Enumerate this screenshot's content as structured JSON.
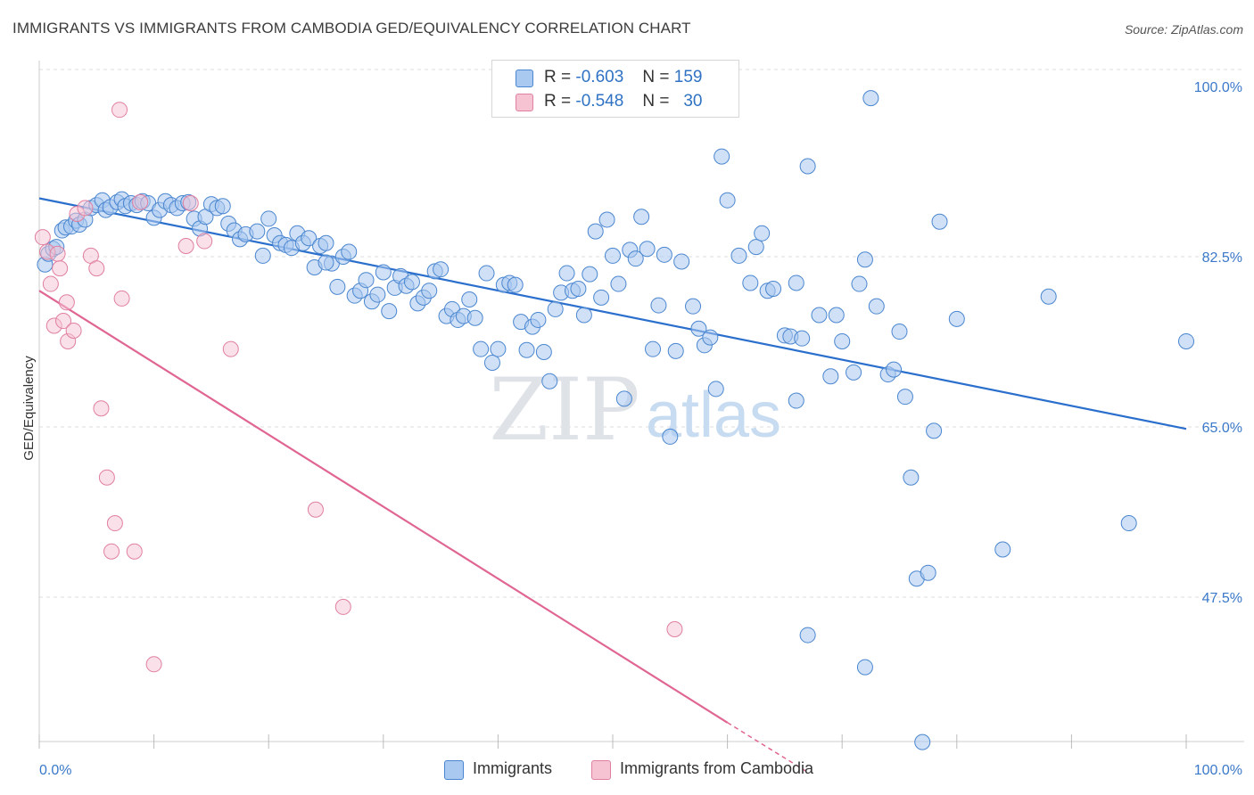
{
  "title": "IMMIGRANTS VS IMMIGRANTS FROM CAMBODIA GED/EQUIVALENCY CORRELATION CHART",
  "source": "Source: ZipAtlas.com",
  "watermark": {
    "zip": "ZIP",
    "atlas": "atlas"
  },
  "legend": {
    "r_label": "R =",
    "n_label": "N =",
    "rows": [
      {
        "r": "-0.603",
        "n": "159"
      },
      {
        "r": "-0.548",
        "n": "30"
      }
    ]
  },
  "bottom_legend": [
    "Immigrants",
    "Immigrants from Cambodia"
  ],
  "colors": {
    "blue_fill": "#a9c9f0",
    "blue_stroke": "#4a86cf",
    "blue_line": "#2b6fcc",
    "pink_fill": "#f6c3d3",
    "pink_stroke": "#e07fa0",
    "pink_line": "#e06592",
    "tick_text": "#3a78c9"
  },
  "chart_data": {
    "type": "scatter",
    "title": "IMMIGRANTS VS IMMIGRANTS FROM CAMBODIA GED/EQUIVALENCY CORRELATION CHART",
    "xlabel": "",
    "ylabel": "GED/Equivalency",
    "xlim": [
      0,
      100
    ],
    "ylim": [
      32,
      100
    ],
    "x_tick_labels": [
      "0.0%",
      "100.0%"
    ],
    "y_ticks": [
      47.5,
      65.0,
      82.5,
      100.0
    ],
    "y_tick_labels": [
      "47.5%",
      "65.0%",
      "82.5%",
      "100.0%"
    ],
    "grid": true,
    "legend_position": "top-center",
    "series": [
      {
        "name": "Immigrants",
        "r": -0.603,
        "n": 159,
        "trend": {
          "x": [
            0,
            100
          ],
          "y": [
            88.5,
            64.8
          ]
        },
        "points": [
          [
            0.5,
            81.7
          ],
          [
            0.8,
            82.8
          ],
          [
            1.2,
            83.3
          ],
          [
            1.5,
            83.5
          ],
          [
            2.0,
            85.2
          ],
          [
            2.3,
            85.5
          ],
          [
            2.8,
            85.6
          ],
          [
            3.2,
            86.2
          ],
          [
            3.5,
            85.8
          ],
          [
            4.0,
            86.3
          ],
          [
            4.5,
            87.5
          ],
          [
            5.0,
            87.8
          ],
          [
            5.5,
            88.3
          ],
          [
            5.8,
            87.3
          ],
          [
            6.2,
            87.6
          ],
          [
            6.8,
            88.1
          ],
          [
            7.2,
            88.4
          ],
          [
            7.5,
            87.7
          ],
          [
            8.0,
            88.0
          ],
          [
            8.5,
            87.8
          ],
          [
            9.0,
            88.2
          ],
          [
            9.5,
            88.0
          ],
          [
            10.0,
            86.5
          ],
          [
            10.5,
            87.3
          ],
          [
            11.0,
            88.2
          ],
          [
            11.5,
            87.8
          ],
          [
            12.0,
            87.5
          ],
          [
            12.5,
            88.0
          ],
          [
            13.0,
            88.1
          ],
          [
            13.5,
            86.4
          ],
          [
            14.0,
            85.4
          ],
          [
            14.5,
            86.6
          ],
          [
            15.0,
            87.9
          ],
          [
            15.5,
            87.5
          ],
          [
            16.0,
            87.7
          ],
          [
            16.5,
            85.9
          ],
          [
            17.0,
            85.2
          ],
          [
            17.5,
            84.3
          ],
          [
            18.0,
            84.8
          ],
          [
            19.0,
            85.1
          ],
          [
            19.5,
            82.6
          ],
          [
            20.0,
            86.4
          ],
          [
            20.5,
            84.7
          ],
          [
            21.0,
            83.9
          ],
          [
            21.5,
            83.7
          ],
          [
            22.0,
            83.4
          ],
          [
            22.5,
            84.9
          ],
          [
            23.0,
            83.9
          ],
          [
            23.5,
            84.4
          ],
          [
            24.0,
            81.4
          ],
          [
            24.5,
            83.6
          ],
          [
            25.0,
            83.9
          ],
          [
            25.5,
            81.8
          ],
          [
            26.0,
            79.4
          ],
          [
            26.5,
            82.5
          ],
          [
            27.0,
            83.0
          ],
          [
            27.5,
            78.5
          ],
          [
            28.0,
            79.0
          ],
          [
            28.5,
            80.1
          ],
          [
            29.0,
            77.9
          ],
          [
            29.5,
            78.6
          ],
          [
            30.0,
            80.9
          ],
          [
            30.5,
            76.9
          ],
          [
            31.0,
            79.3
          ],
          [
            31.5,
            80.5
          ],
          [
            32.0,
            79.5
          ],
          [
            32.5,
            79.9
          ],
          [
            33.0,
            77.7
          ],
          [
            33.5,
            78.3
          ],
          [
            34.0,
            79.0
          ],
          [
            34.5,
            81.0
          ],
          [
            35.0,
            81.2
          ],
          [
            35.5,
            76.4
          ],
          [
            36.0,
            77.1
          ],
          [
            36.5,
            76.0
          ],
          [
            37.0,
            76.4
          ],
          [
            37.5,
            78.1
          ],
          [
            38.0,
            76.2
          ],
          [
            38.5,
            73.0
          ],
          [
            39.0,
            80.8
          ],
          [
            39.5,
            71.6
          ],
          [
            40.0,
            73.0
          ],
          [
            40.5,
            79.6
          ],
          [
            41.0,
            79.8
          ],
          [
            41.5,
            79.6
          ],
          [
            42.0,
            75.8
          ],
          [
            42.5,
            72.9
          ],
          [
            43.0,
            75.3
          ],
          [
            43.5,
            76.0
          ],
          [
            44.0,
            72.7
          ],
          [
            44.5,
            69.7
          ],
          [
            45.0,
            77.1
          ],
          [
            45.5,
            78.8
          ],
          [
            46.0,
            80.8
          ],
          [
            46.5,
            79.0
          ],
          [
            47.0,
            79.2
          ],
          [
            47.5,
            76.5
          ],
          [
            48.0,
            80.7
          ],
          [
            48.5,
            85.1
          ],
          [
            49.0,
            78.3
          ],
          [
            49.5,
            86.3
          ],
          [
            50.0,
            82.6
          ],
          [
            50.5,
            79.7
          ],
          [
            51.0,
            67.9
          ],
          [
            51.5,
            83.2
          ],
          [
            52.0,
            82.3
          ],
          [
            52.5,
            86.6
          ],
          [
            53.0,
            83.3
          ],
          [
            53.5,
            73.0
          ],
          [
            54.0,
            77.5
          ],
          [
            54.5,
            82.7
          ],
          [
            55.0,
            64.0
          ],
          [
            55.5,
            72.8
          ],
          [
            56.0,
            82.0
          ],
          [
            57.0,
            77.4
          ],
          [
            57.5,
            75.1
          ],
          [
            58.0,
            73.4
          ],
          [
            58.5,
            74.2
          ],
          [
            59.0,
            68.9
          ],
          [
            59.5,
            92.8
          ],
          [
            60.0,
            88.3
          ],
          [
            61.0,
            82.6
          ],
          [
            62.0,
            79.8
          ],
          [
            62.5,
            83.5
          ],
          [
            63.0,
            84.9
          ],
          [
            63.5,
            79.0
          ],
          [
            64.0,
            79.2
          ],
          [
            65.0,
            74.4
          ],
          [
            65.5,
            74.3
          ],
          [
            66.0,
            67.7
          ],
          [
            66.5,
            74.1
          ],
          [
            67.0,
            91.8
          ],
          [
            68.0,
            76.5
          ],
          [
            69.0,
            70.2
          ],
          [
            69.5,
            76.5
          ],
          [
            70.0,
            73.8
          ],
          [
            71.0,
            70.6
          ],
          [
            71.5,
            79.7
          ],
          [
            72.0,
            82.2
          ],
          [
            72.5,
            98.8
          ],
          [
            73.0,
            77.4
          ],
          [
            74.0,
            70.4
          ],
          [
            74.5,
            70.9
          ],
          [
            75.0,
            74.8
          ],
          [
            75.5,
            68.1
          ],
          [
            76.0,
            59.8
          ],
          [
            76.5,
            49.4
          ],
          [
            77.0,
            32.6
          ],
          [
            77.5,
            50.0
          ],
          [
            78.0,
            64.6
          ],
          [
            78.5,
            86.1
          ],
          [
            80.0,
            76.1
          ],
          [
            84.0,
            52.4
          ],
          [
            88.0,
            78.4
          ],
          [
            95.0,
            55.1
          ],
          [
            100.0,
            73.8
          ],
          [
            67.0,
            43.6
          ],
          [
            72.0,
            40.3
          ],
          [
            66.0,
            79.8
          ],
          [
            25.0,
            81.9
          ]
        ]
      },
      {
        "name": "Immigrants from Cambodia",
        "r": -0.548,
        "n": 30,
        "trend": {
          "x": [
            0,
            60
          ],
          "y": [
            79.0,
            34.6
          ],
          "dashed_to": {
            "x": 67,
            "y": 29.5
          }
        },
        "points": [
          [
            0.3,
            84.5
          ],
          [
            0.7,
            83.0
          ],
          [
            1.0,
            79.7
          ],
          [
            1.3,
            75.4
          ],
          [
            1.6,
            82.8
          ],
          [
            1.8,
            81.3
          ],
          [
            2.1,
            75.9
          ],
          [
            2.4,
            77.8
          ],
          [
            2.5,
            73.8
          ],
          [
            3.0,
            74.9
          ],
          [
            3.3,
            86.9
          ],
          [
            4.0,
            87.5
          ],
          [
            4.5,
            82.6
          ],
          [
            5.0,
            81.3
          ],
          [
            5.4,
            66.9
          ],
          [
            5.9,
            59.8
          ],
          [
            6.3,
            52.2
          ],
          [
            6.6,
            55.1
          ],
          [
            7.0,
            97.6
          ],
          [
            7.2,
            78.2
          ],
          [
            8.3,
            52.2
          ],
          [
            10.0,
            40.6
          ],
          [
            12.8,
            83.6
          ],
          [
            13.2,
            88.0
          ],
          [
            14.4,
            84.1
          ],
          [
            16.7,
            73.0
          ],
          [
            24.1,
            56.5
          ],
          [
            26.5,
            46.5
          ],
          [
            55.4,
            44.2
          ],
          [
            8.8,
            88.1
          ]
        ]
      }
    ]
  }
}
